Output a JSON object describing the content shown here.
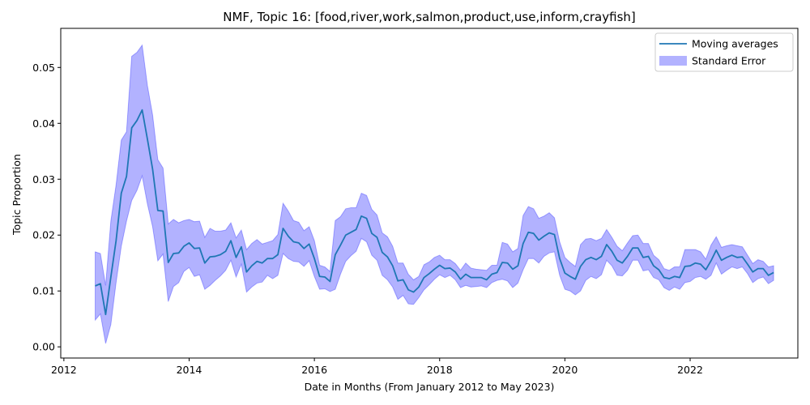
{
  "chart_data": {
    "type": "line",
    "title": "NMF, Topic 16: [food,river,work,salmon,product,use,inform,crayfish]",
    "xlabel": "Date in Months (From January 2012 to May 2023)",
    "ylabel": "Topic Proportion",
    "xlim": [
      2011.95,
      2023.72
    ],
    "ylim": [
      -0.002,
      0.057
    ],
    "xticks": [
      2012,
      2014,
      2016,
      2018,
      2020,
      2022
    ],
    "xtick_labels": [
      "2012",
      "2014",
      "2016",
      "2018",
      "2020",
      "2022"
    ],
    "yticks": [
      0.0,
      0.01,
      0.02,
      0.03,
      0.04,
      0.05
    ],
    "ytick_labels": [
      "0.00",
      "0.01",
      "0.02",
      "0.03",
      "0.04",
      "0.05"
    ],
    "grid": false,
    "legend": {
      "position": "top-right",
      "entries": [
        "Moving averages",
        "Standard Error"
      ]
    },
    "colors": {
      "line": "#1f77b4",
      "band": "#0000ff",
      "band_alpha": 0.3
    },
    "series": [
      {
        "name": "Moving averages",
        "x": [
          "2012-07",
          "2012-08",
          "2012-09",
          "2012-10",
          "2012-11",
          "2012-12",
          "2013-01",
          "2013-02",
          "2013-03",
          "2013-04",
          "2013-05",
          "2013-06",
          "2013-07",
          "2013-08",
          "2013-09",
          "2013-10",
          "2013-11",
          "2013-12",
          "2014-01",
          "2014-02",
          "2014-03",
          "2014-04",
          "2014-05",
          "2014-06",
          "2014-07",
          "2014-08",
          "2014-09",
          "2014-10",
          "2014-11",
          "2014-12",
          "2015-01",
          "2015-02",
          "2015-03",
          "2015-04",
          "2015-05",
          "2015-06",
          "2015-07",
          "2015-08",
          "2015-09",
          "2015-10",
          "2015-11",
          "2015-12",
          "2016-01",
          "2016-02",
          "2016-03",
          "2016-04",
          "2016-05",
          "2016-06",
          "2016-07",
          "2016-08",
          "2016-09",
          "2016-10",
          "2016-11",
          "2016-12",
          "2017-01",
          "2017-02",
          "2017-03",
          "2017-04",
          "2017-05",
          "2017-06",
          "2017-07",
          "2017-08",
          "2017-09",
          "2017-10",
          "2017-11",
          "2017-12",
          "2018-01",
          "2018-02",
          "2018-03",
          "2018-04",
          "2018-05",
          "2018-06",
          "2018-07",
          "2018-08",
          "2018-09",
          "2018-10",
          "2018-11",
          "2018-12",
          "2019-01",
          "2019-02",
          "2019-03",
          "2019-04",
          "2019-05",
          "2019-06",
          "2019-07",
          "2019-08",
          "2019-09",
          "2019-10",
          "2019-11",
          "2019-12",
          "2020-01",
          "2020-02",
          "2020-03",
          "2020-04",
          "2020-05",
          "2020-06",
          "2020-07",
          "2020-08",
          "2020-09",
          "2020-10",
          "2020-11",
          "2020-12",
          "2021-01",
          "2021-02",
          "2021-03",
          "2021-04",
          "2021-05",
          "2021-06",
          "2021-07",
          "2021-08",
          "2021-09",
          "2021-10",
          "2021-11",
          "2021-12",
          "2022-01",
          "2022-02",
          "2022-03",
          "2022-04",
          "2022-05",
          "2022-06",
          "2022-07",
          "2022-08",
          "2022-09",
          "2022-10",
          "2022-11",
          "2022-12",
          "2023-01",
          "2023-02",
          "2023-03",
          "2023-04",
          "2023-05"
        ],
        "y": [
          0.0109,
          0.0113,
          0.0058,
          0.0125,
          0.019,
          0.0275,
          0.0305,
          0.0392,
          0.0405,
          0.0424,
          0.0372,
          0.0318,
          0.0244,
          0.0243,
          0.0151,
          0.0167,
          0.0168,
          0.018,
          0.0186,
          0.0176,
          0.0177,
          0.015,
          0.0161,
          0.0162,
          0.0165,
          0.0171,
          0.019,
          0.016,
          0.0179,
          0.0134,
          0.0145,
          0.0153,
          0.015,
          0.0158,
          0.0158,
          0.0165,
          0.0212,
          0.0198,
          0.0188,
          0.0186,
          0.0176,
          0.0184,
          0.0158,
          0.0126,
          0.0125,
          0.0117,
          0.0165,
          0.0182,
          0.02,
          0.0205,
          0.021,
          0.0234,
          0.023,
          0.0203,
          0.0196,
          0.0169,
          0.0161,
          0.0145,
          0.0118,
          0.012,
          0.0102,
          0.0098,
          0.0107,
          0.0124,
          0.0131,
          0.0139,
          0.0146,
          0.014,
          0.0141,
          0.0134,
          0.0121,
          0.013,
          0.0124,
          0.0124,
          0.0124,
          0.012,
          0.013,
          0.0133,
          0.0151,
          0.015,
          0.0139,
          0.0145,
          0.0185,
          0.0205,
          0.0203,
          0.0191,
          0.0198,
          0.0204,
          0.0201,
          0.0158,
          0.0132,
          0.0126,
          0.0121,
          0.0144,
          0.0156,
          0.016,
          0.0156,
          0.0162,
          0.0183,
          0.0171,
          0.0155,
          0.015,
          0.0162,
          0.0177,
          0.0177,
          0.016,
          0.0162,
          0.0145,
          0.0138,
          0.0124,
          0.0122,
          0.0126,
          0.0124,
          0.0144,
          0.0145,
          0.015,
          0.0148,
          0.0138,
          0.0154,
          0.0173,
          0.0155,
          0.016,
          0.0164,
          0.016,
          0.0161,
          0.0148,
          0.0134,
          0.014,
          0.014,
          0.0128,
          0.0133
        ]
      },
      {
        "name": "Standard Error",
        "upper": [
          0.017,
          0.0167,
          0.011,
          0.0225,
          0.029,
          0.037,
          0.0385,
          0.052,
          0.0527,
          0.054,
          0.0468,
          0.0415,
          0.0335,
          0.032,
          0.022,
          0.0228,
          0.0222,
          0.0226,
          0.0228,
          0.0224,
          0.0225,
          0.0196,
          0.0212,
          0.0207,
          0.0207,
          0.0209,
          0.0222,
          0.0195,
          0.0209,
          0.0174,
          0.0185,
          0.0192,
          0.0184,
          0.0187,
          0.019,
          0.0201,
          0.0257,
          0.0243,
          0.0226,
          0.0223,
          0.0208,
          0.0215,
          0.019,
          0.0146,
          0.0143,
          0.0135,
          0.0226,
          0.0233,
          0.0247,
          0.0249,
          0.0249,
          0.0275,
          0.0271,
          0.0246,
          0.0236,
          0.0204,
          0.0197,
          0.018,
          0.015,
          0.015,
          0.013,
          0.012,
          0.0126,
          0.0147,
          0.0152,
          0.016,
          0.0164,
          0.0156,
          0.0156,
          0.0149,
          0.0137,
          0.015,
          0.0141,
          0.0139,
          0.0138,
          0.0137,
          0.0146,
          0.0146,
          0.0187,
          0.0184,
          0.017,
          0.0176,
          0.0235,
          0.0251,
          0.0247,
          0.023,
          0.0234,
          0.024,
          0.0231,
          0.0188,
          0.016,
          0.0151,
          0.0144,
          0.0183,
          0.0193,
          0.0194,
          0.019,
          0.0194,
          0.021,
          0.0196,
          0.018,
          0.0172,
          0.0186,
          0.0199,
          0.02,
          0.0185,
          0.0185,
          0.0164,
          0.0156,
          0.014,
          0.0137,
          0.0143,
          0.0143,
          0.0174,
          0.0174,
          0.0174,
          0.017,
          0.0157,
          0.0182,
          0.0197,
          0.0178,
          0.0181,
          0.0183,
          0.0181,
          0.0179,
          0.0164,
          0.0149,
          0.0156,
          0.0153,
          0.0143,
          0.0145
        ],
        "lower": [
          0.0048,
          0.0059,
          0.0006,
          0.004,
          0.0115,
          0.018,
          0.0225,
          0.0262,
          0.028,
          0.0306,
          0.0256,
          0.0215,
          0.0154,
          0.0166,
          0.0081,
          0.0108,
          0.0115,
          0.0135,
          0.0142,
          0.0126,
          0.0129,
          0.0103,
          0.011,
          0.0119,
          0.0127,
          0.0137,
          0.0155,
          0.0125,
          0.0148,
          0.0098,
          0.0107,
          0.0114,
          0.0116,
          0.0128,
          0.0122,
          0.0128,
          0.0167,
          0.0158,
          0.0153,
          0.0152,
          0.0144,
          0.0154,
          0.0126,
          0.0103,
          0.0104,
          0.0099,
          0.0103,
          0.013,
          0.0153,
          0.0163,
          0.0171,
          0.0194,
          0.0188,
          0.0164,
          0.0155,
          0.0128,
          0.012,
          0.0107,
          0.0085,
          0.0092,
          0.0077,
          0.0076,
          0.0088,
          0.0102,
          0.0111,
          0.0121,
          0.0129,
          0.0124,
          0.0128,
          0.012,
          0.0106,
          0.011,
          0.0107,
          0.0108,
          0.0109,
          0.0106,
          0.0115,
          0.0119,
          0.0121,
          0.0118,
          0.0106,
          0.0114,
          0.0138,
          0.0158,
          0.0158,
          0.015,
          0.0162,
          0.0168,
          0.017,
          0.0128,
          0.0103,
          0.01,
          0.0093,
          0.01,
          0.0119,
          0.0126,
          0.0122,
          0.0129,
          0.0155,
          0.0145,
          0.0128,
          0.0127,
          0.0137,
          0.0155,
          0.0155,
          0.0136,
          0.0138,
          0.0124,
          0.012,
          0.0106,
          0.0101,
          0.0107,
          0.0103,
          0.0115,
          0.0117,
          0.0124,
          0.0126,
          0.0121,
          0.0128,
          0.015,
          0.013,
          0.0137,
          0.0143,
          0.014,
          0.0143,
          0.0131,
          0.0115,
          0.0122,
          0.0125,
          0.0113,
          0.0119
        ]
      }
    ]
  }
}
